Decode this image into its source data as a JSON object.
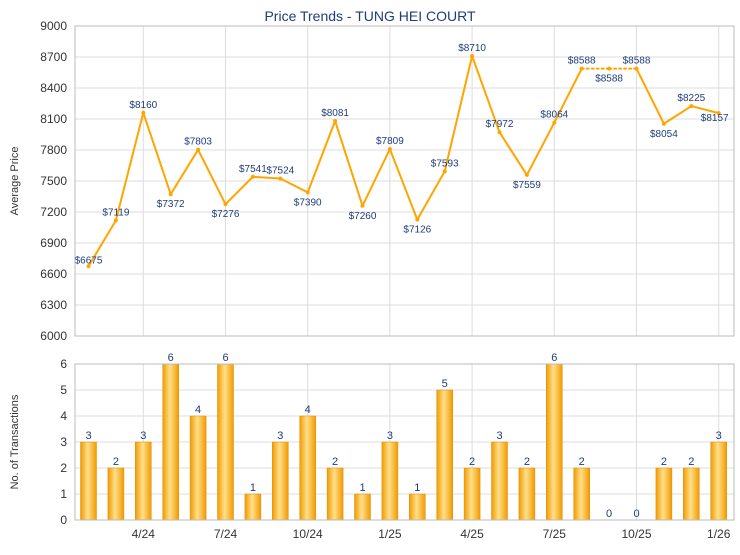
{
  "chart_data": [
    {
      "type": "line",
      "title": "Price Trends - TUNG HEI COURT",
      "ylabel": "Average Price",
      "ylim": [
        6000,
        9000
      ],
      "yticks": [
        6000,
        6300,
        6600,
        6900,
        7200,
        7500,
        7800,
        8100,
        8400,
        8700,
        9000
      ],
      "grid": true,
      "color": "#FFA500",
      "series": [
        {
          "values": [
            6675,
            7119,
            8160,
            7372,
            7803,
            7276,
            7541,
            7524,
            7390,
            8081,
            7260,
            7809,
            7126,
            7593,
            8710,
            7972,
            7559,
            8064,
            8588,
            8588,
            8588,
            8054,
            8225,
            8157
          ],
          "labels": [
            "$6675",
            "$7119",
            "$8160",
            "$7372",
            "$7803",
            "$7276",
            "$7541",
            "$7524",
            "$7390",
            "$8081",
            "$7260",
            "$7809",
            "$7126",
            "$7593",
            "$8710",
            "$7972",
            "$7559",
            "$8064",
            "$8588",
            "$8588",
            "$8588",
            "$8054",
            "$8225",
            "$8157"
          ]
        }
      ]
    },
    {
      "type": "bar",
      "ylabel": "No. of Transactions",
      "ylim": [
        0,
        6
      ],
      "yticks": [
        0,
        1,
        2,
        3,
        4,
        5,
        6
      ],
      "grid": true,
      "color": "#FFA500",
      "x_ticks": [
        "4/24",
        "7/24",
        "10/24",
        "1/25",
        "4/25",
        "7/25",
        "10/25",
        "1/26"
      ],
      "values": [
        3,
        2,
        3,
        6,
        4,
        6,
        1,
        3,
        4,
        2,
        1,
        3,
        1,
        5,
        2,
        3,
        2,
        6,
        2,
        0,
        0,
        2,
        2,
        3
      ],
      "labels": [
        "3",
        "2",
        "3",
        "6",
        "4",
        "6",
        "1",
        "3",
        "4",
        "2",
        "1",
        "3",
        "1",
        "5",
        "2",
        "3",
        "2",
        "6",
        "2",
        "0",
        "0",
        "2",
        "2",
        "3"
      ]
    }
  ]
}
